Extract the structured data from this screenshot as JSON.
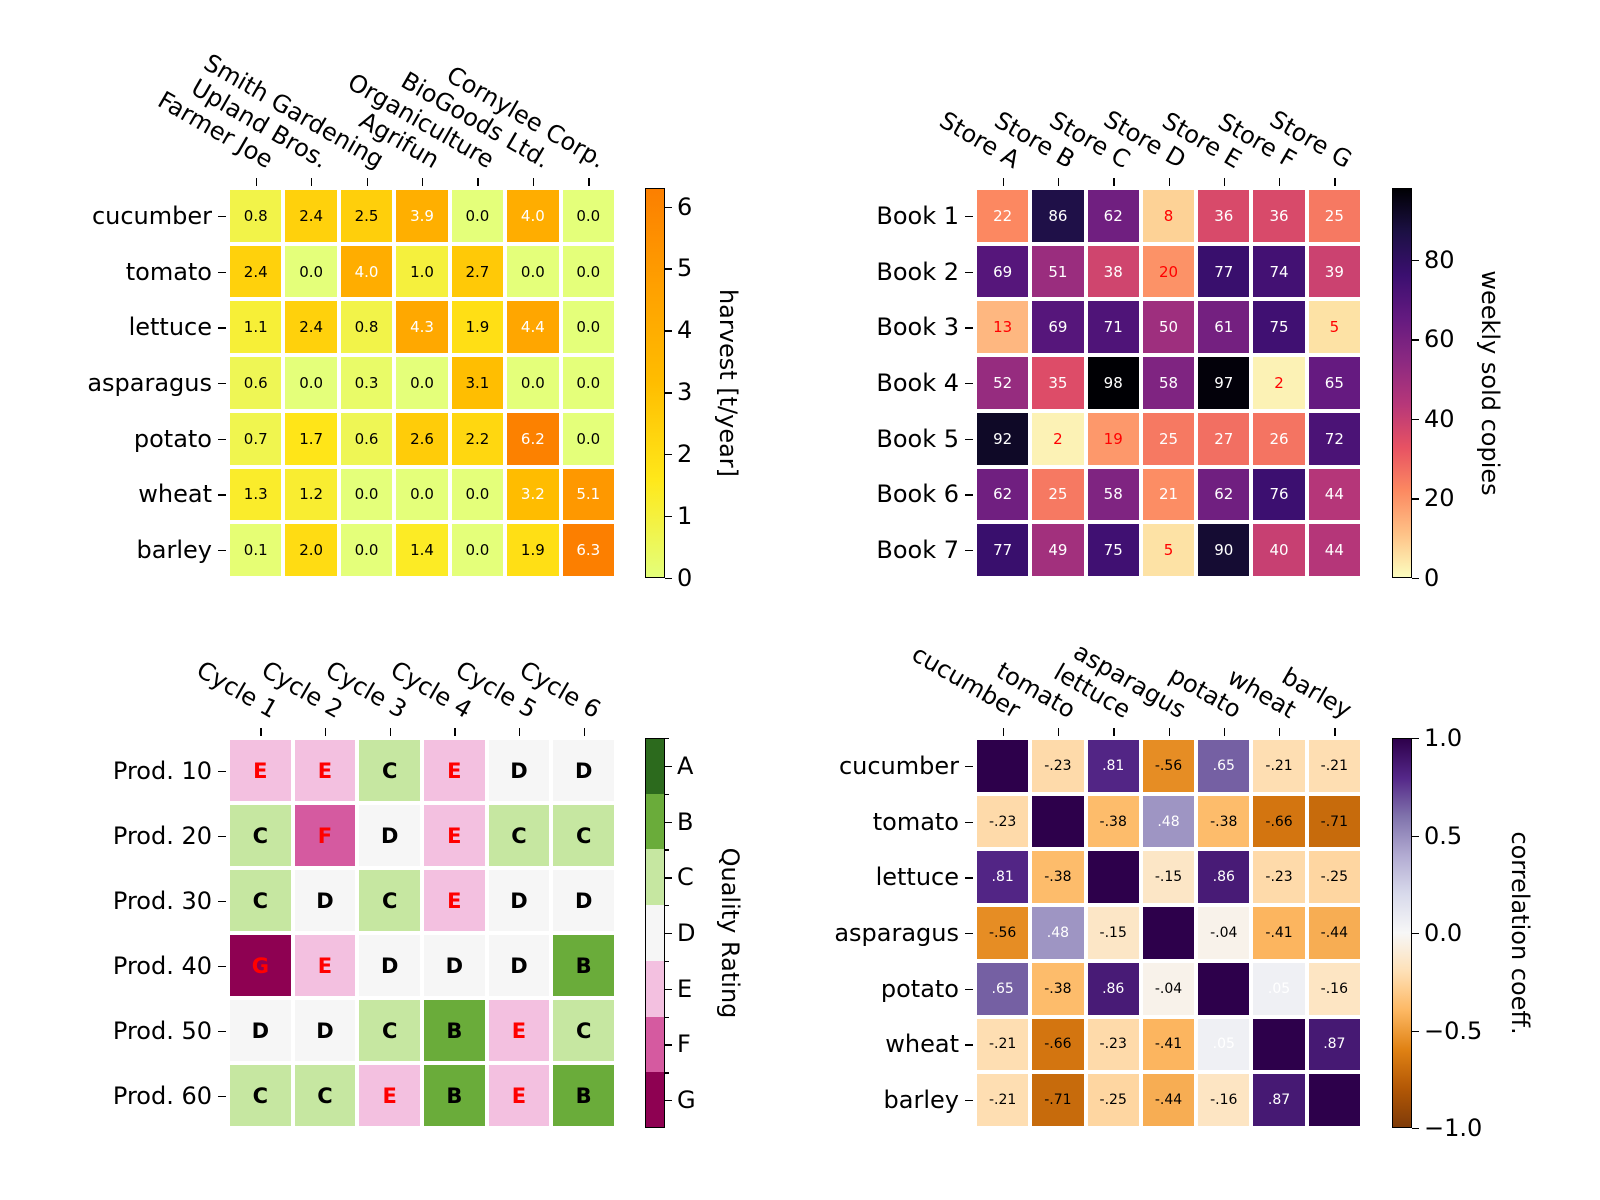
{
  "chart_data": [
    {
      "type": "heatmap",
      "y_categories": [
        "cucumber",
        "tomato",
        "lettuce",
        "asparagus",
        "potato",
        "wheat",
        "barley"
      ],
      "x_categories": [
        "Farmer Joe",
        "Upland Bros.",
        "Smith Gardening",
        "Agrifun",
        "Organiculture",
        "BioGoods Ltd.",
        "Cornylee Corp."
      ],
      "values": [
        [
          0.8,
          2.4,
          2.5,
          3.9,
          0.0,
          4.0,
          0.0
        ],
        [
          2.4,
          0.0,
          4.0,
          1.0,
          2.7,
          0.0,
          0.0
        ],
        [
          1.1,
          2.4,
          0.8,
          4.3,
          1.9,
          4.4,
          0.0
        ],
        [
          0.6,
          0.0,
          0.3,
          0.0,
          3.1,
          0.0,
          0.0
        ],
        [
          0.7,
          1.7,
          0.6,
          2.6,
          2.2,
          6.2,
          0.0
        ],
        [
          1.3,
          1.2,
          0.0,
          0.0,
          0.0,
          3.2,
          5.1
        ],
        [
          0.1,
          2.0,
          0.0,
          1.4,
          0.0,
          1.9,
          6.3
        ]
      ],
      "colormap": "Wistia",
      "colorbar": {
        "label": "harvest [t/year]",
        "range": [
          0,
          6.3
        ],
        "ticks": [
          "0",
          "1",
          "2",
          "3",
          "4",
          "5",
          "6"
        ]
      }
    },
    {
      "type": "heatmap",
      "y_categories": [
        "Book 1",
        "Book 2",
        "Book 3",
        "Book 4",
        "Book 5",
        "Book 6",
        "Book 7"
      ],
      "x_categories": [
        "Store A",
        "Store B",
        "Store C",
        "Store D",
        "Store E",
        "Store F",
        "Store G"
      ],
      "values": [
        [
          22,
          86,
          62,
          8,
          36,
          36,
          25
        ],
        [
          69,
          51,
          38,
          20,
          77,
          74,
          39
        ],
        [
          13,
          69,
          71,
          50,
          61,
          75,
          5
        ],
        [
          52,
          35,
          98,
          58,
          97,
          2,
          65
        ],
        [
          92,
          2,
          19,
          25,
          27,
          26,
          72
        ],
        [
          62,
          25,
          58,
          21,
          62,
          76,
          44
        ],
        [
          77,
          49,
          75,
          5,
          90,
          40,
          44
        ]
      ],
      "colormap": "magma_r",
      "text_colors": [
        "#ff0000",
        "#ffffff"
      ],
      "colorbar": {
        "label": "weekly sold copies",
        "range": [
          0,
          98
        ],
        "ticks": [
          "0",
          "20",
          "40",
          "60",
          "80"
        ]
      }
    },
    {
      "type": "heatmap",
      "y_categories": [
        "Prod. 10",
        "Prod. 20",
        "Prod. 30",
        "Prod. 40",
        "Prod. 50",
        "Prod. 60"
      ],
      "x_categories": [
        "Cycle 1",
        "Cycle 2",
        "Cycle 3",
        "Cycle 4",
        "Cycle 5",
        "Cycle 6"
      ],
      "values": [
        [
          "E",
          "E",
          "C",
          "E",
          "D",
          "D"
        ],
        [
          "C",
          "F",
          "D",
          "E",
          "C",
          "C"
        ],
        [
          "C",
          "D",
          "C",
          "E",
          "D",
          "D"
        ],
        [
          "G",
          "E",
          "D",
          "D",
          "D",
          "B"
        ],
        [
          "D",
          "D",
          "C",
          "B",
          "E",
          "C"
        ],
        [
          "C",
          "C",
          "E",
          "B",
          "E",
          "B"
        ]
      ],
      "levels": [
        "A",
        "B",
        "C",
        "D",
        "E",
        "F",
        "G"
      ],
      "level_colors": [
        "#2c6a1d",
        "#6aac3a",
        "#c6e7a1",
        "#f6f6f6",
        "#f3c0e0",
        "#d55aa0",
        "#8e0152"
      ],
      "text_colors": [
        "#ff0000",
        "#000000"
      ],
      "colorbar": {
        "label": "Quality Rating",
        "ticks": [
          "A",
          "B",
          "C",
          "D",
          "E",
          "F",
          "G"
        ]
      }
    },
    {
      "type": "heatmap",
      "y_categories": [
        "cucumber",
        "tomato",
        "lettuce",
        "asparagus",
        "potato",
        "wheat",
        "barley"
      ],
      "x_categories": [
        "cucumber",
        "tomato",
        "lettuce",
        "asparagus",
        "potato",
        "wheat",
        "barley"
      ],
      "values": [
        [
          1.0,
          -0.23,
          0.81,
          -0.56,
          0.65,
          -0.21,
          -0.21
        ],
        [
          -0.23,
          1.0,
          -0.38,
          0.48,
          -0.38,
          -0.66,
          -0.71
        ],
        [
          0.81,
          -0.38,
          1.0,
          -0.15,
          0.86,
          -0.23,
          -0.25
        ],
        [
          -0.56,
          0.48,
          -0.15,
          1.0,
          -0.04,
          -0.41,
          -0.44
        ],
        [
          0.65,
          -0.38,
          0.86,
          -0.04,
          1.0,
          0.05,
          -0.16
        ],
        [
          -0.21,
          -0.66,
          -0.23,
          -0.41,
          0.05,
          1.0,
          0.87
        ],
        [
          -0.21,
          -0.71,
          -0.25,
          -0.44,
          -0.16,
          0.87,
          1.0
        ]
      ],
      "colormap": "PuOr",
      "colorbar": {
        "label": "correlation coeff.",
        "range": [
          -1,
          1
        ],
        "ticks": [
          "−1.0",
          "−0.5",
          "0.0",
          "0.5",
          "1.0"
        ]
      }
    }
  ]
}
